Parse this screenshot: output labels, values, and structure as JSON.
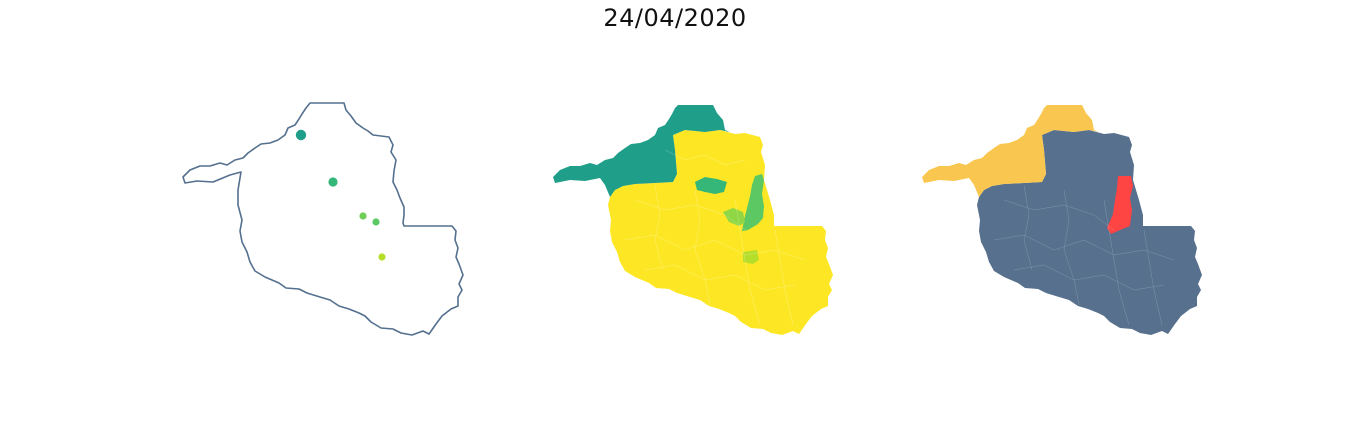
{
  "title": "24/04/2020",
  "colors": {
    "outline": "#54708e",
    "viridis_dark": "#1f9e89",
    "viridis_mid": "#35b779",
    "viridis_light": "#6ece58",
    "viridis_lime": "#b5de2b",
    "viridis_yellow": "#fde725",
    "slate": "#56708d",
    "gold": "#f9c74f",
    "red": "#ff4444"
  },
  "maps": [
    {
      "id": "points",
      "kind": "point-map",
      "points": [
        {
          "color": "#1f9e89",
          "size": "large"
        },
        {
          "color": "#35b779",
          "size": "medium"
        },
        {
          "color": "#6ece58",
          "size": "small"
        },
        {
          "color": "#5cc863",
          "size": "small"
        },
        {
          "color": "#b5de2b",
          "size": "small"
        }
      ]
    },
    {
      "id": "choropleth",
      "kind": "choropleth",
      "palette": [
        "#1f9e89",
        "#35b779",
        "#6ece58",
        "#b5de2b",
        "#fde725"
      ]
    },
    {
      "id": "categories",
      "kind": "categorical",
      "palette": [
        "#56708d",
        "#f9c74f",
        "#ff4444"
      ]
    }
  ]
}
